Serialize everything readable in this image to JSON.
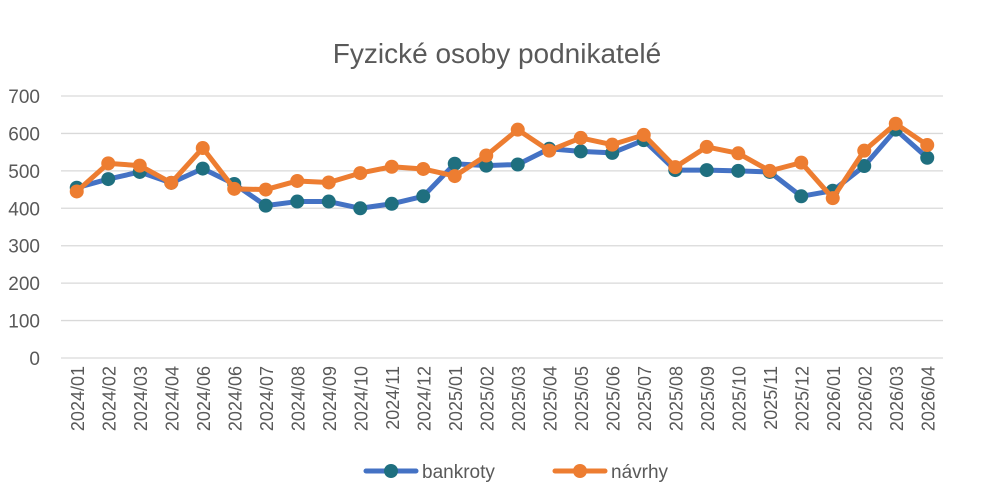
{
  "chart_data": {
    "type": "line",
    "title": "Fyzické osoby podnikatelé",
    "xlabel": "",
    "ylabel": "",
    "ylim": [
      0,
      700
    ],
    "yticks": [
      0,
      100,
      200,
      300,
      400,
      500,
      600,
      700
    ],
    "grid": true,
    "legend_position": "bottom",
    "categories": [
      "2024/01",
      "2024/02",
      "2024/03",
      "2024/04",
      "2024/06",
      "2024/06",
      "2024/07",
      "2024/08",
      "2024/09",
      "2024/10",
      "2024/11",
      "2024/12",
      "2025/01",
      "2025/02",
      "2025/03",
      "2025/04",
      "2025/05",
      "2025/06",
      "2025/07",
      "2025/08",
      "2025/09",
      "2025/10",
      "2025/11",
      "2025/12",
      "2026/01",
      "2026/02",
      "2026/03",
      "2026/04"
    ],
    "series": [
      {
        "name": "bankroty",
        "color": "#4472c4",
        "marker_color": "#1f6f7f",
        "values": [
          455,
          478,
          497,
          468,
          506,
          465,
          407,
          418,
          418,
          400,
          412,
          432,
          519,
          514,
          517,
          559,
          552,
          548,
          582,
          502,
          502,
          500,
          497,
          432,
          447,
          513,
          610,
          535
        ]
      },
      {
        "name": "návrhy",
        "color": "#ed7d31",
        "marker_color": "#ed7d31",
        "values": [
          445,
          520,
          514,
          468,
          561,
          452,
          450,
          473,
          469,
          494,
          511,
          505,
          486,
          541,
          610,
          554,
          588,
          570,
          596,
          510,
          564,
          547,
          500,
          522,
          427,
          554,
          626,
          569
        ]
      }
    ]
  }
}
